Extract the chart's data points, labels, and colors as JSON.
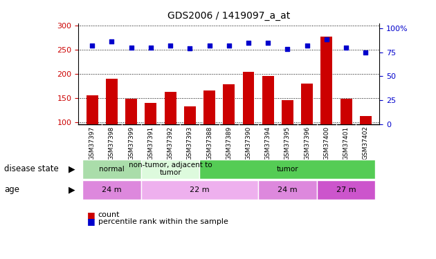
{
  "title": "GDS2006 / 1419097_a_at",
  "samples": [
    "GSM37397",
    "GSM37398",
    "GSM37399",
    "GSM37391",
    "GSM37392",
    "GSM37393",
    "GSM37388",
    "GSM37389",
    "GSM37390",
    "GSM37394",
    "GSM37395",
    "GSM37396",
    "GSM37400",
    "GSM37401",
    "GSM37402"
  ],
  "counts": [
    155,
    190,
    148,
    140,
    162,
    132,
    165,
    178,
    204,
    196,
    145,
    180,
    278,
    148,
    112
  ],
  "percentiles": [
    82,
    86,
    80,
    80,
    82,
    79,
    82,
    82,
    85,
    85,
    78,
    82,
    88,
    80,
    75
  ],
  "bar_color": "#cc0000",
  "dot_color": "#0000cc",
  "ylim_left": [
    95,
    305
  ],
  "ylim_right": [
    0,
    105
  ],
  "yticks_left": [
    100,
    150,
    200,
    250,
    300
  ],
  "yticks_right": [
    0,
    25,
    50,
    75,
    100
  ],
  "disease_state_groups": [
    {
      "label": "normal",
      "start": 0,
      "end": 3,
      "color": "#aaddaa"
    },
    {
      "label": "non-tumor, adjacent to\ntumor",
      "start": 3,
      "end": 6,
      "color": "#ddfadd"
    },
    {
      "label": "tumor",
      "start": 6,
      "end": 15,
      "color": "#55cc55"
    }
  ],
  "age_groups": [
    {
      "label": "24 m",
      "start": 0,
      "end": 3,
      "color": "#dd88dd"
    },
    {
      "label": "22 m",
      "start": 3,
      "end": 9,
      "color": "#eeb0ee"
    },
    {
      "label": "24 m",
      "start": 9,
      "end": 12,
      "color": "#dd88dd"
    },
    {
      "label": "27 m",
      "start": 12,
      "end": 15,
      "color": "#cc55cc"
    }
  ],
  "legend_count_color": "#cc0000",
  "legend_pct_color": "#0000cc",
  "xtick_bg": "#cccccc",
  "disease_row_label": "disease state",
  "age_row_label": "age"
}
